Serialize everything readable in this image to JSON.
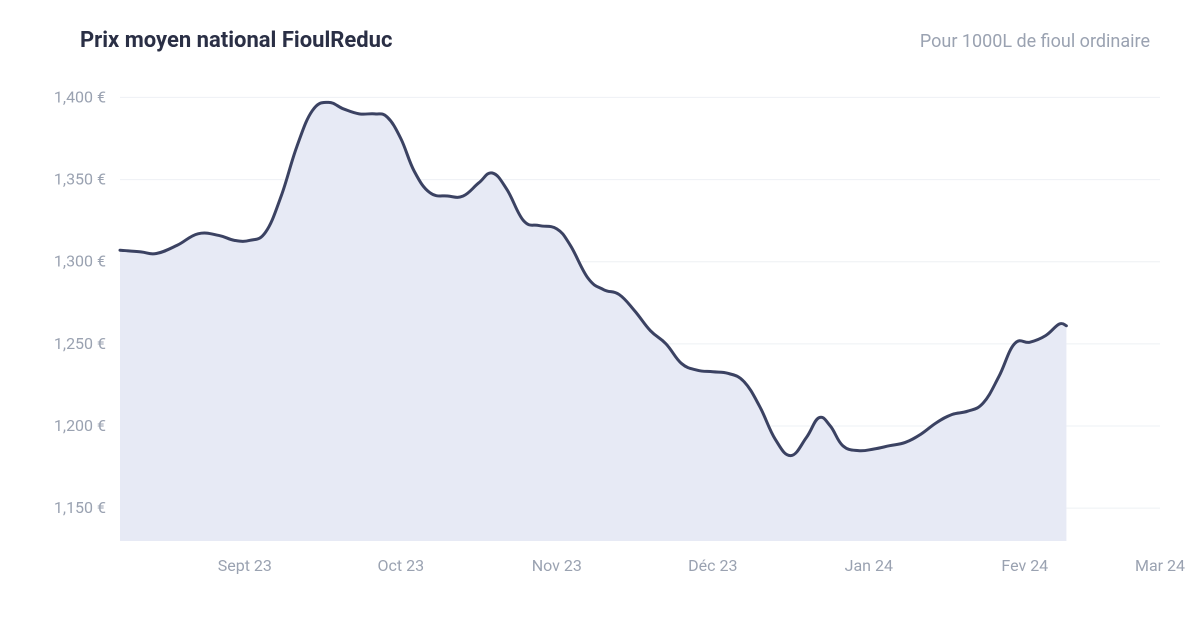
{
  "header": {
    "title": "Prix moyen national FioulReduc",
    "subtitle": "Pour 1000L de fioul ordinaire"
  },
  "chart": {
    "type": "area",
    "background_color": "#ffffff",
    "line_color": "#3b4262",
    "line_width": 3,
    "fill_color": "#e7eaf5",
    "fill_opacity": 1,
    "grid_color": "#eef0f4",
    "axis_label_color": "#9aa2b1",
    "title_color": "#2a2f45",
    "title_fontsize": 22,
    "subtitle_fontsize": 18,
    "tick_fontsize": 16,
    "ylim": [
      1130,
      1410
    ],
    "yticks": [
      1150,
      1200,
      1250,
      1300,
      1350,
      1400
    ],
    "ytick_labels": [
      "1,150 €",
      "1,200 €",
      "1,250 €",
      "1,300 €",
      "1,350 €",
      "1,400 €"
    ],
    "x_categories": [
      "Sept 23",
      "Oct 23",
      "Nov 23",
      "Déc 23",
      "Jan 24",
      "Fev 24",
      "Mar 24"
    ],
    "x_positions": [
      0.12,
      0.27,
      0.42,
      0.57,
      0.72,
      0.87,
      1.0
    ],
    "data": [
      [
        0.0,
        1307
      ],
      [
        0.02,
        1306
      ],
      [
        0.035,
        1305
      ],
      [
        0.055,
        1310
      ],
      [
        0.075,
        1317
      ],
      [
        0.095,
        1316
      ],
      [
        0.11,
        1313
      ],
      [
        0.125,
        1313
      ],
      [
        0.14,
        1318
      ],
      [
        0.155,
        1340
      ],
      [
        0.17,
        1370
      ],
      [
        0.185,
        1392
      ],
      [
        0.2,
        1397
      ],
      [
        0.215,
        1393
      ],
      [
        0.23,
        1390
      ],
      [
        0.245,
        1390
      ],
      [
        0.257,
        1388
      ],
      [
        0.27,
        1375
      ],
      [
        0.283,
        1355
      ],
      [
        0.298,
        1342
      ],
      [
        0.315,
        1340
      ],
      [
        0.33,
        1340
      ],
      [
        0.345,
        1348
      ],
      [
        0.358,
        1354
      ],
      [
        0.372,
        1344
      ],
      [
        0.388,
        1325
      ],
      [
        0.403,
        1322
      ],
      [
        0.42,
        1320
      ],
      [
        0.433,
        1310
      ],
      [
        0.45,
        1290
      ],
      [
        0.465,
        1283
      ],
      [
        0.48,
        1280
      ],
      [
        0.495,
        1270
      ],
      [
        0.51,
        1258
      ],
      [
        0.525,
        1250
      ],
      [
        0.54,
        1238
      ],
      [
        0.555,
        1234
      ],
      [
        0.57,
        1233
      ],
      [
        0.585,
        1232
      ],
      [
        0.6,
        1227
      ],
      [
        0.615,
        1212
      ],
      [
        0.63,
        1192
      ],
      [
        0.645,
        1182
      ],
      [
        0.66,
        1193
      ],
      [
        0.672,
        1205
      ],
      [
        0.683,
        1200
      ],
      [
        0.695,
        1188
      ],
      [
        0.71,
        1185
      ],
      [
        0.725,
        1186
      ],
      [
        0.74,
        1188
      ],
      [
        0.755,
        1190
      ],
      [
        0.77,
        1195
      ],
      [
        0.785,
        1202
      ],
      [
        0.8,
        1207
      ],
      [
        0.815,
        1209
      ],
      [
        0.83,
        1214
      ],
      [
        0.845,
        1230
      ],
      [
        0.86,
        1250
      ],
      [
        0.875,
        1251
      ],
      [
        0.89,
        1255
      ],
      [
        0.903,
        1262
      ],
      [
        0.91,
        1261
      ]
    ]
  }
}
